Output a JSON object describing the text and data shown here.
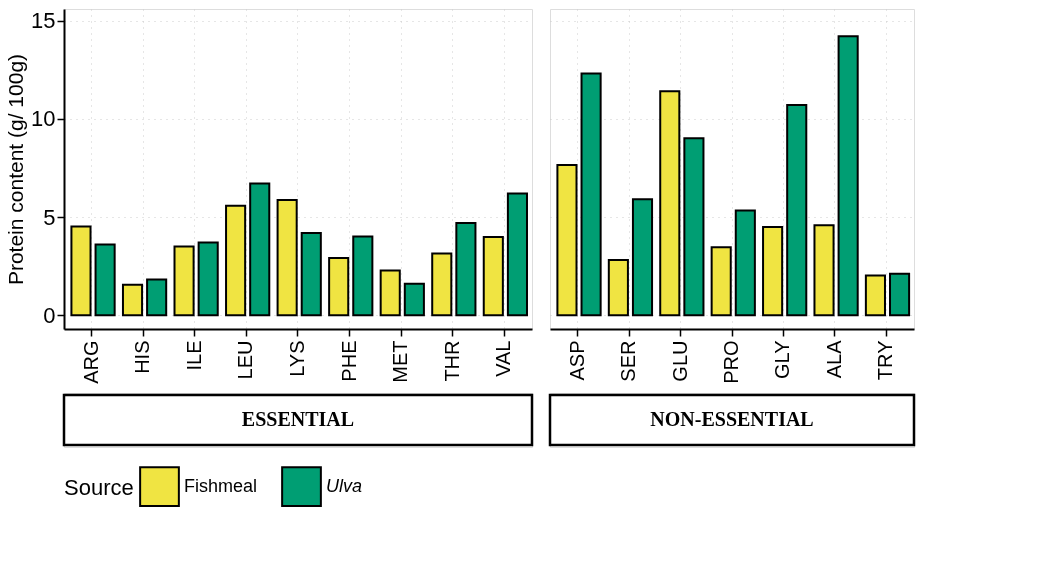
{
  "chart_data": [
    {
      "type": "bar",
      "xlabel": "ESSENTIAL",
      "ylabel": "Protein content (g/ 100g)",
      "legend_title": "Source",
      "legend": "bottom",
      "grid": true,
      "ylim": [
        -0.7,
        15.6
      ],
      "yticks": [
        0,
        5,
        10,
        15
      ],
      "categories": [
        "ARG",
        "HIS",
        "ILE",
        "LEU",
        "LYS",
        "PHE",
        "MET",
        "THR",
        "VAL"
      ],
      "series": [
        {
          "name": "Fishmeal",
          "color": "#f0e442",
          "values": [
            4.52,
            1.55,
            3.5,
            5.58,
            5.87,
            2.92,
            2.28,
            3.15,
            3.99
          ]
        },
        {
          "name": "Ulva",
          "color": "#009e73",
          "values": [
            3.61,
            1.82,
            3.7,
            6.71,
            4.19,
            4.01,
            1.6,
            4.7,
            6.2
          ]
        }
      ]
    },
    {
      "type": "bar",
      "xlabel": "NON-ESSENTIAL",
      "grid": true,
      "tick_labels": "x",
      "ylim": [
        -0.7,
        15.6
      ],
      "yticks": [
        0,
        5,
        10,
        15
      ],
      "categories": [
        "ASP",
        "SER",
        "GLU",
        "PRO",
        "GLY",
        "ALA",
        "TRY"
      ],
      "series": [
        {
          "name": "Fishmeal",
          "color": "#f0e442",
          "values": [
            7.65,
            2.81,
            11.41,
            3.46,
            4.49,
            4.59,
            2.03
          ]
        },
        {
          "name": "Ulva",
          "color": "#009e73",
          "values": [
            12.32,
            5.91,
            9.02,
            5.33,
            10.71,
            14.21,
            2.12
          ]
        }
      ]
    }
  ]
}
